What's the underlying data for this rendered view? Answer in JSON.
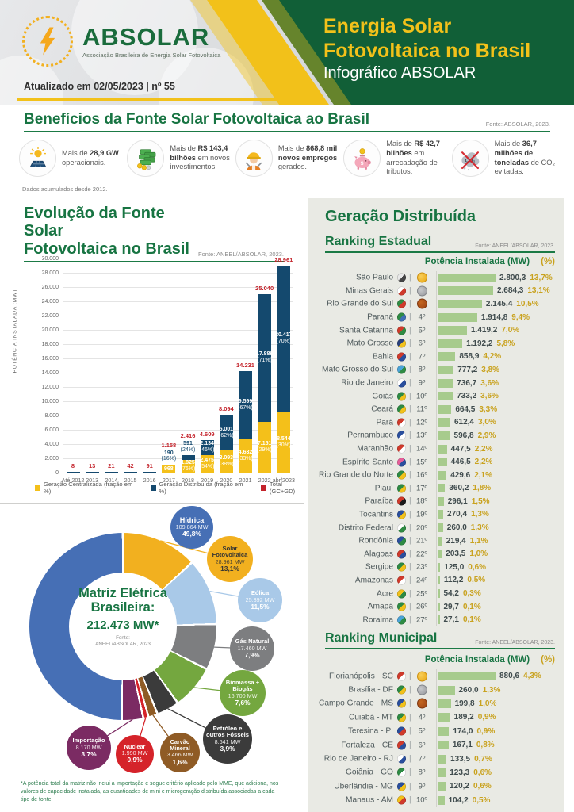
{
  "header": {
    "logo": {
      "brand": "ABSOLAR",
      "tagline": "Associação Brasileira de Energia Solar Fotovoltaica"
    },
    "updated": "Atualizado em 02/05/2023 | nº 55",
    "title_line1": "Energia Solar",
    "title_line2": "Fotovoltaica no Brasil",
    "subtitle": "Infográfico ABSOLAR",
    "brand_green": "#115F37",
    "brand_yellow": "#F2C11A"
  },
  "benefits": {
    "title": "Benefícios da Fonte Solar Fotovoltaica ao Brasil",
    "source": "Fonte: ABSOLAR, 2023.",
    "footnote": "Dados acumulados desde 2012.",
    "items": [
      {
        "icon": "solar-panel-icon",
        "segments": [
          {
            "t": "Mais de ",
            "b": false
          },
          {
            "t": "28,9 GW",
            "b": true
          },
          {
            "t": " operacionais.",
            "b": false
          }
        ]
      },
      {
        "icon": "money-icon",
        "segments": [
          {
            "t": "Mais de ",
            "b": false
          },
          {
            "t": "R$ 143,4 bilhões",
            "b": true
          },
          {
            "t": " em novos investimentos.",
            "b": false
          }
        ]
      },
      {
        "icon": "worker-icon",
        "segments": [
          {
            "t": "Mais de ",
            "b": false
          },
          {
            "t": "868,8 mil novos empregos",
            "b": true
          },
          {
            "t": " gerados.",
            "b": false
          }
        ]
      },
      {
        "icon": "piggy-bank-icon",
        "segments": [
          {
            "t": "Mais de ",
            "b": false
          },
          {
            "t": "R$ 42,7 bilhões",
            "b": true
          },
          {
            "t": " em arrecadação de tributos.",
            "b": false
          }
        ]
      },
      {
        "icon": "co2-icon",
        "segments": [
          {
            "t": "Mais de ",
            "b": false
          },
          {
            "t": "36,7 milhões de toneladas",
            "b": true
          },
          {
            "t": " de CO₂ evitadas.",
            "b": false
          }
        ]
      }
    ]
  },
  "ui": {
    "gd_title": "Geração Distribuída"
  },
  "chart_data": [
    {
      "id": "evolucao",
      "type": "bar",
      "stacked": true,
      "title": "Evolução da Fonte Solar Fotovoltaica no Brasil",
      "title_line1": "Evolução da Fonte Solar",
      "title_line2": "Fotovoltaica no Brasil",
      "source": "Fonte: ANEEL/ABSOLAR, 2023.",
      "ylabel": "POTÊNCIA INSTALADA  (MW)",
      "ylim": [
        0,
        30000
      ],
      "ytick_step": 2000,
      "grid": true,
      "legend_position": "bottom",
      "categories": [
        "Até 2012",
        "2013",
        "2014",
        "2015",
        "2016",
        "2017",
        "2018",
        "2019",
        "2020",
        "2021",
        "2022",
        "abr/2023"
      ],
      "series": [
        {
          "name": "Geração Centralizada (fração em %)",
          "color": "#F4C01A",
          "values": [
            0,
            0,
            0,
            0,
            0,
            968,
            1825,
            2475,
            3093,
            4632,
            7151,
            8544
          ],
          "labels": [
            "",
            "",
            "",
            "",
            "",
            "968",
            "1.825",
            "2.475",
            "3.093",
            "4.632",
            "7.151",
            "8.544"
          ],
          "pcts": [
            "",
            "",
            "",
            "",
            "",
            "",
            "(76%)",
            "(54%)",
            "(38%)",
            "(33%)",
            "(29%)",
            "(30%)"
          ]
        },
        {
          "name": "Geração Distribuída (fração em %)",
          "color": "#14496E",
          "values": [
            8,
            13,
            21,
            42,
            91,
            190,
            591,
            2134,
            5001,
            9599,
            17889,
            20417
          ],
          "labels": [
            "",
            "",
            "",
            "",
            "",
            "190",
            "591",
            "2.134",
            "5.001",
            "9.599",
            "17.889",
            "20.417"
          ],
          "pcts": [
            "",
            "",
            "",
            "",
            "",
            "(16%)",
            "(24%)",
            "(46%)",
            "(62%)",
            "(67%)",
            "(71%)",
            "(70%)"
          ]
        }
      ],
      "totals": {
        "name": "Total (GC+GD)",
        "color": "#C3222A",
        "values": [
          8,
          13,
          21,
          42,
          91,
          1158,
          2416,
          4609,
          8094,
          14231,
          25040,
          28961
        ],
        "labels": [
          "8",
          "13",
          "21",
          "42",
          "91",
          "1.158",
          "2.416",
          "4.609",
          "8.094",
          "14.231",
          "25.040",
          "28.961"
        ]
      }
    },
    {
      "id": "matriz",
      "type": "pie",
      "title": "Matriz Elétrica Brasileira:",
      "total": "212.473 MW*",
      "source_line1": "Fonte:",
      "source_line2": "ANEEL/ABSOLAR, 2023",
      "footnote": "*A potência total da matriz não inclui a importação e segue critério aplicado pelo MME, que adiciona, nos valores de capacidade instalada, as quantidades de mini e microgeração distribuída associadas a cada tipo de fonte.",
      "slices": [
        {
          "name": "Solar Fotovoltaica",
          "mw": "28.961 MW",
          "pct": "13,1%",
          "value": 13.1,
          "color": "#F2B01F",
          "text": "#333333"
        },
        {
          "name": "Eólica",
          "mw": "25.392 MW",
          "pct": "11,5%",
          "value": 11.5,
          "color": "#A9C9E8",
          "text": "#FFFFFF"
        },
        {
          "name": "Gás Natural",
          "mw": "17.460 MW",
          "pct": "7,9%",
          "value": 7.9,
          "color": "#7D7E80",
          "text": "#FFFFFF"
        },
        {
          "name": "Biomassa + Biogás",
          "mw": "16.700 MW",
          "pct": "7,6%",
          "value": 7.6,
          "color": "#74A73F",
          "text": "#FFFFFF"
        },
        {
          "name": "Petróleo e outros Fósseis",
          "mw": "8.641 MW",
          "pct": "3,9%",
          "value": 3.9,
          "color": "#3B3B3B",
          "text": "#FFFFFF"
        },
        {
          "name": "Carvão Mineral",
          "mw": "3.466 MW",
          "pct": "1,6%",
          "value": 1.6,
          "color": "#8F5B25",
          "text": "#FFFFFF"
        },
        {
          "name": "Nuclear",
          "mw": "1.990 MW",
          "pct": "0,9%",
          "value": 0.9,
          "color": "#D5232A",
          "text": "#FFFFFF"
        },
        {
          "name": "Importação",
          "mw": "8.170 MW",
          "pct": "3,7%",
          "value": 3.7,
          "color": "#7B2B63",
          "text": "#FFFFFF"
        },
        {
          "name": "Hídrica",
          "mw": "109.864 MW",
          "pct": "49,8%",
          "value": 49.8,
          "color": "#466FB5",
          "text": "#FFFFFF"
        }
      ]
    },
    {
      "id": "ranking-estadual",
      "type": "bar",
      "orientation": "horizontal",
      "title": "Ranking Estadual",
      "source": "Fonte: ANEEL/ABSOLAR, 2023.",
      "col_header_mw": "Potência Instalada (MW)",
      "col_header_pct": "(%)",
      "bar_color": "#A7CB8D",
      "rows": [
        {
          "name": "São Paulo",
          "rank": 1,
          "rank_label": "",
          "value": 2800.3,
          "value_label": "2.800,3",
          "pct_label": "13,7%",
          "flag": [
            "#e8e8e8",
            "#444444"
          ]
        },
        {
          "name": "Minas Gerais",
          "rank": 2,
          "rank_label": "",
          "value": 2684.3,
          "value_label": "2.684,3",
          "pct_label": "13,1%",
          "flag": [
            "#ffffff",
            "#d03a2b"
          ]
        },
        {
          "name": "Rio Grande do Sul",
          "rank": 3,
          "rank_label": "",
          "value": 2145.4,
          "value_label": "2.145,4",
          "pct_label": "10,5%",
          "flag": [
            "#2e8b43",
            "#d03a2b"
          ]
        },
        {
          "name": "Paraná",
          "rank": 4,
          "rank_label": "4º",
          "value": 1914.8,
          "value_label": "1.914,8",
          "pct_label": "9,4%",
          "flag": [
            "#2e8b43",
            "#3f6fb5"
          ]
        },
        {
          "name": "Santa Catarina",
          "rank": 5,
          "rank_label": "5º",
          "value": 1419.2,
          "value_label": "1.419,2",
          "pct_label": "7,0%",
          "flag": [
            "#d03a2b",
            "#2e8b43"
          ]
        },
        {
          "name": "Mato Grosso",
          "rank": 6,
          "rank_label": "6º",
          "value": 1192.2,
          "value_label": "1.192,2",
          "pct_label": "5,8%",
          "flag": [
            "#28407c",
            "#f2c11a"
          ]
        },
        {
          "name": "Bahia",
          "rank": 7,
          "rank_label": "7º",
          "value": 858.9,
          "value_label": "858,9",
          "pct_label": "4,2%",
          "flag": [
            "#d03a2b",
            "#2a4f9e"
          ]
        },
        {
          "name": "Mato Grosso do Sul",
          "rank": 8,
          "rank_label": "8º",
          "value": 777.2,
          "value_label": "777,2",
          "pct_label": "3,8%",
          "flag": [
            "#4aa3d8",
            "#2e8b43"
          ]
        },
        {
          "name": "Rio de Janeiro",
          "rank": 9,
          "rank_label": "9º",
          "value": 736.7,
          "value_label": "736,7",
          "pct_label": "3,6%",
          "flag": [
            "#ffffff",
            "#2a4f9e"
          ]
        },
        {
          "name": "Goiás",
          "rank": 10,
          "rank_label": "10º",
          "value": 733.2,
          "value_label": "733,2",
          "pct_label": "3,6%",
          "flag": [
            "#2e8b43",
            "#f2c11a"
          ]
        },
        {
          "name": "Ceará",
          "rank": 11,
          "rank_label": "11º",
          "value": 664.5,
          "value_label": "664,5",
          "pct_label": "3,3%",
          "flag": [
            "#2e8b43",
            "#f2c11a"
          ]
        },
        {
          "name": "Pará",
          "rank": 12,
          "rank_label": "12º",
          "value": 612.4,
          "value_label": "612,4",
          "pct_label": "3,0%",
          "flag": [
            "#d03a2b",
            "#ffffff"
          ]
        },
        {
          "name": "Pernambuco",
          "rank": 13,
          "rank_label": "13º",
          "value": 596.8,
          "value_label": "596,8",
          "pct_label": "2,9%",
          "flag": [
            "#2a4f9e",
            "#ffffff"
          ]
        },
        {
          "name": "Maranhão",
          "rank": 14,
          "rank_label": "14º",
          "value": 447.5,
          "value_label": "447,5",
          "pct_label": "2,2%",
          "flag": [
            "#d03a2b",
            "#ffffff"
          ]
        },
        {
          "name": "Espírito Santo",
          "rank": 15,
          "rank_label": "15º",
          "value": 446.5,
          "value_label": "446,5",
          "pct_label": "2,2%",
          "flag": [
            "#e85f9a",
            "#2a4f9e"
          ]
        },
        {
          "name": "Rio Grande do Norte",
          "rank": 16,
          "rank_label": "16º",
          "value": 429.6,
          "value_label": "429,6",
          "pct_label": "2,1%",
          "flag": [
            "#2e8b43",
            "#f2c11a"
          ]
        },
        {
          "name": "Piauí",
          "rank": 17,
          "rank_label": "17º",
          "value": 360.2,
          "value_label": "360,2",
          "pct_label": "1,8%",
          "flag": [
            "#2e8b43",
            "#f2c11a"
          ]
        },
        {
          "name": "Paraíba",
          "rank": 18,
          "rank_label": "18º",
          "value": 296.1,
          "value_label": "296,1",
          "pct_label": "1,5%",
          "flag": [
            "#d03a2b",
            "#1a1a1a"
          ]
        },
        {
          "name": "Tocantins",
          "rank": 19,
          "rank_label": "19º",
          "value": 270.4,
          "value_label": "270,4",
          "pct_label": "1,3%",
          "flag": [
            "#2a4f9e",
            "#f2c11a"
          ]
        },
        {
          "name": "Distrito Federal",
          "rank": 20,
          "rank_label": "20º",
          "value": 260.0,
          "value_label": "260,0",
          "pct_label": "1,3%",
          "flag": [
            "#ffffff",
            "#2e8b43"
          ]
        },
        {
          "name": "Rondônia",
          "rank": 21,
          "rank_label": "21º",
          "value": 219.4,
          "value_label": "219,4",
          "pct_label": "1,1%",
          "flag": [
            "#2a4f9e",
            "#2e8b43"
          ]
        },
        {
          "name": "Alagoas",
          "rank": 22,
          "rank_label": "22º",
          "value": 203.5,
          "value_label": "203,5",
          "pct_label": "1,0%",
          "flag": [
            "#d03a2b",
            "#2a4f9e"
          ]
        },
        {
          "name": "Sergipe",
          "rank": 23,
          "rank_label": "23º",
          "value": 125.0,
          "value_label": "125,0",
          "pct_label": "0,6%",
          "flag": [
            "#2e8b43",
            "#f2c11a"
          ]
        },
        {
          "name": "Amazonas",
          "rank": 24,
          "rank_label": "24º",
          "value": 112.2,
          "value_label": "112,2",
          "pct_label": "0,5%",
          "flag": [
            "#d03a2b",
            "#ffffff"
          ]
        },
        {
          "name": "Acre",
          "rank": 25,
          "rank_label": "25º",
          "value": 54.2,
          "value_label": "54,2",
          "pct_label": "0,3%",
          "flag": [
            "#f2c11a",
            "#2e8b43"
          ]
        },
        {
          "name": "Amapá",
          "rank": 26,
          "rank_label": "26º",
          "value": 29.7,
          "value_label": "29,7",
          "pct_label": "0,1%",
          "flag": [
            "#2e8b43",
            "#f2c11a"
          ]
        },
        {
          "name": "Roraima",
          "rank": 27,
          "rank_label": "27º",
          "value": 27.1,
          "value_label": "27,1",
          "pct_label": "0,1%",
          "flag": [
            "#4aa3d8",
            "#2e8b43"
          ]
        }
      ]
    },
    {
      "id": "ranking-municipal",
      "type": "bar",
      "orientation": "horizontal",
      "title": "Ranking Municipal",
      "source": "Fonte: ANEEL/ABSOLAR, 2023.",
      "col_header_mw": "Potência Instalada (MW)",
      "col_header_pct": "(%)",
      "bar_color": "#A7CB8D",
      "rows": [
        {
          "name": "Florianópolis - SC",
          "rank": 1,
          "rank_label": "",
          "value": 880.6,
          "value_label": "880,6",
          "pct_label": "4,3%",
          "flag": [
            "#d03a2b",
            "#ffffff"
          ]
        },
        {
          "name": "Brasília - DF",
          "rank": 2,
          "rank_label": "",
          "value": 260.0,
          "value_label": "260,0",
          "pct_label": "1,3%",
          "flag": [
            "#2e8b43",
            "#f2c11a"
          ]
        },
        {
          "name": "Campo Grande - MS",
          "rank": 3,
          "rank_label": "",
          "value": 199.8,
          "value_label": "199,8",
          "pct_label": "1,0%",
          "flag": [
            "#2a4f9e",
            "#f2c11a"
          ]
        },
        {
          "name": "Cuiabá - MT",
          "rank": 4,
          "rank_label": "4º",
          "value": 189.2,
          "value_label": "189,2",
          "pct_label": "0,9%",
          "flag": [
            "#2e8b43",
            "#f2c11a"
          ]
        },
        {
          "name": "Teresina - PI",
          "rank": 5,
          "rank_label": "5º",
          "value": 174.0,
          "value_label": "174,0",
          "pct_label": "0,9%",
          "flag": [
            "#2a4f9e",
            "#d03a2b"
          ]
        },
        {
          "name": "Fortaleza - CE",
          "rank": 6,
          "rank_label": "6º",
          "value": 167.1,
          "value_label": "167,1",
          "pct_label": "0,8%",
          "flag": [
            "#d03a2b",
            "#2a4f9e"
          ]
        },
        {
          "name": "Rio de Janeiro - RJ",
          "rank": 7,
          "rank_label": "7º",
          "value": 133.5,
          "value_label": "133,5",
          "pct_label": "0,7%",
          "flag": [
            "#ffffff",
            "#2a4f9e"
          ]
        },
        {
          "name": "Goiânia - GO",
          "rank": 8,
          "rank_label": "8º",
          "value": 123.3,
          "value_label": "123,3",
          "pct_label": "0,6%",
          "flag": [
            "#2e8b43",
            "#ffffff"
          ]
        },
        {
          "name": "Uberlândia - MG",
          "rank": 9,
          "rank_label": "9º",
          "value": 120.2,
          "value_label": "120,2",
          "pct_label": "0,6%",
          "flag": [
            "#2a4f9e",
            "#f2c11a"
          ]
        },
        {
          "name": "Manaus - AM",
          "rank": 10,
          "rank_label": "10º",
          "value": 104.2,
          "value_label": "104,2",
          "pct_label": "0,5%",
          "flag": [
            "#f2c11a",
            "#d03a2b"
          ]
        }
      ]
    }
  ]
}
